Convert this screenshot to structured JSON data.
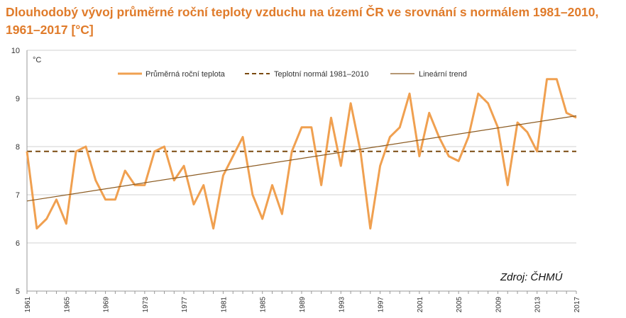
{
  "title": "Dlouhodobý vývoj průměrné roční teploty vzduchu na území ČR ve srovnání s normálem 1981–2010, 1961–2017 [°C]",
  "colors": {
    "title": "#E07B2A",
    "series": "#F0A050",
    "normal": "#7A4A10",
    "trend": "#8B5A20",
    "grid": "#d0d0d0"
  },
  "chart_data": {
    "type": "line",
    "title": "Dlouhodobý vývoj průměrné roční teploty vzduchu na území ČR ve srovnání s normálem 1981–2010, 1961–2017 [°C]",
    "ylabel": "°C",
    "xlabel": "",
    "ylim": [
      5,
      10
    ],
    "xlim": [
      1961,
      2017
    ],
    "yticks": [
      "5",
      "6",
      "7",
      "8",
      "9",
      "10"
    ],
    "xticks": [
      "1961",
      "1965",
      "1969",
      "1973",
      "1977",
      "1981",
      "1985",
      "1989",
      "1993",
      "1997",
      "2001",
      "2005",
      "2009",
      "2013",
      "2017"
    ],
    "grid": true,
    "legend_position": "top",
    "x": [
      1961,
      1962,
      1963,
      1964,
      1965,
      1966,
      1967,
      1968,
      1969,
      1970,
      1971,
      1972,
      1973,
      1974,
      1975,
      1976,
      1977,
      1978,
      1979,
      1980,
      1981,
      1982,
      1983,
      1984,
      1985,
      1986,
      1987,
      1988,
      1989,
      1990,
      1991,
      1992,
      1993,
      1994,
      1995,
      1996,
      1997,
      1998,
      1999,
      2000,
      2001,
      2002,
      2003,
      2004,
      2005,
      2006,
      2007,
      2008,
      2009,
      2010,
      2011,
      2012,
      2013,
      2014,
      2015,
      2016,
      2017
    ],
    "series": [
      {
        "name": "Průměrná roční teplota",
        "style": "solid-thick",
        "values": [
          7.9,
          6.3,
          6.5,
          6.9,
          6.4,
          7.9,
          8.0,
          7.3,
          6.9,
          6.9,
          7.5,
          7.2,
          7.2,
          7.9,
          8.0,
          7.3,
          7.6,
          6.8,
          7.2,
          6.3,
          7.4,
          7.8,
          8.2,
          7.0,
          6.5,
          7.2,
          6.6,
          7.9,
          8.4,
          8.4,
          7.2,
          8.6,
          7.6,
          8.9,
          7.9,
          6.3,
          7.6,
          8.2,
          8.4,
          9.1,
          7.8,
          8.7,
          8.2,
          7.8,
          7.7,
          8.2,
          9.1,
          8.9,
          8.4,
          7.2,
          8.5,
          8.3,
          7.9,
          9.4,
          9.4,
          8.7,
          8.6
        ]
      },
      {
        "name": "Teplotní normál 1981–2010",
        "style": "dashed",
        "values": [
          7.9,
          7.9
        ],
        "x": [
          1961,
          2017
        ]
      },
      {
        "name": "Lineární trend",
        "style": "solid-thin",
        "values": [
          6.87,
          8.64
        ],
        "x": [
          1961,
          2017
        ]
      }
    ],
    "annotations": [
      {
        "text": "Zdroj: ČHMÚ"
      }
    ]
  }
}
